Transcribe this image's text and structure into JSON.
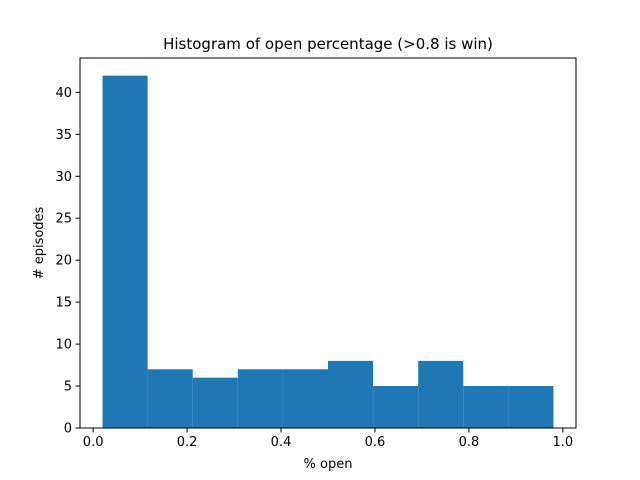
{
  "chart_data": {
    "type": "bar",
    "subtype": "histogram",
    "title": "Histogram of open percentage (>0.8 is win)",
    "xlabel": "% open",
    "ylabel": "# episodes",
    "bin_edges": [
      0.02,
      0.116,
      0.212,
      0.308,
      0.404,
      0.5,
      0.596,
      0.692,
      0.788,
      0.884,
      0.98
    ],
    "values": [
      42,
      7,
      6,
      7,
      7,
      8,
      5,
      8,
      5,
      5
    ],
    "xlim": [
      -0.028,
      1.028
    ],
    "ylim": [
      0,
      44.1
    ],
    "xticks": [
      0.0,
      0.2,
      0.4,
      0.6,
      0.8,
      1.0
    ],
    "xtick_labels": [
      "0.0",
      "0.2",
      "0.4",
      "0.6",
      "0.8",
      "1.0"
    ],
    "yticks": [
      0,
      5,
      10,
      15,
      20,
      25,
      30,
      35,
      40
    ],
    "ytick_labels": [
      "0",
      "5",
      "10",
      "15",
      "20",
      "25",
      "30",
      "35",
      "40"
    ],
    "bar_color": "#1f77b4",
    "grid": false,
    "legend": "none"
  }
}
